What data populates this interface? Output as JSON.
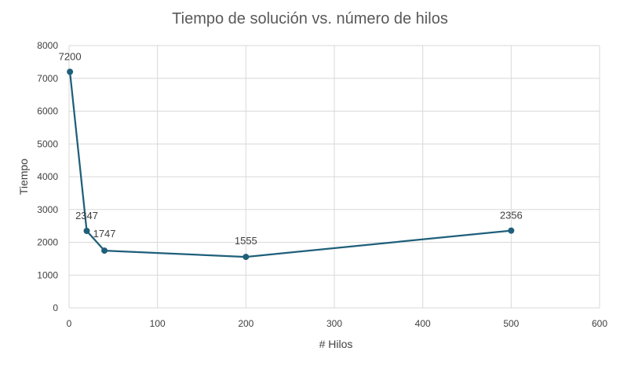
{
  "chart_data": {
    "type": "scatter",
    "title": "Tiempo de solución vs. número de hilos",
    "xlabel": "# Hilos",
    "ylabel": "Tiempo",
    "xlim": [
      0,
      600
    ],
    "ylim": [
      0,
      8000
    ],
    "x_ticks": [
      0,
      100,
      200,
      300,
      400,
      500,
      600
    ],
    "y_ticks": [
      0,
      1000,
      2000,
      3000,
      4000,
      5000,
      6000,
      7000,
      8000
    ],
    "grid": true,
    "legend": "none",
    "line_color": "#1f5f7a",
    "series": [
      {
        "x": [
          1,
          20,
          40,
          200,
          500
        ],
        "y": [
          7200,
          2347,
          1747,
          1555,
          2356
        ],
        "labels": [
          "7200",
          "2347",
          "1747",
          "1555",
          "2356"
        ]
      }
    ]
  }
}
